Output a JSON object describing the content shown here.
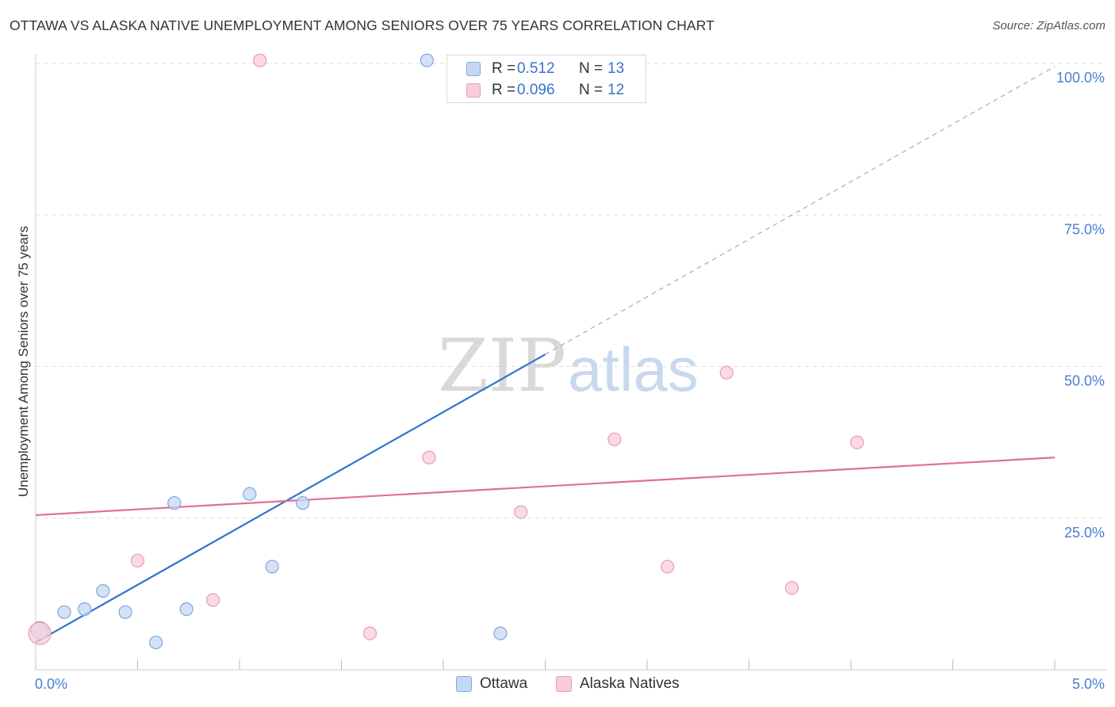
{
  "title": "OTTAWA VS ALASKA NATIVE UNEMPLOYMENT AMONG SENIORS OVER 75 YEARS CORRELATION CHART",
  "source": "Source: ZipAtlas.com",
  "watermark": {
    "zip": "ZIP",
    "atlas": "atlas"
  },
  "colors": {
    "ottawa": "#4a7fd0",
    "ottawa_fill": "#c5d8f3",
    "ottawa_line": "#2e74d0",
    "alaska": "#e06f97",
    "alaska_fill": "#f8cdd9",
    "alaska_line": "#e06f97",
    "grid": "#dddddd",
    "tick_text": "#4a7fd0"
  },
  "legend": {
    "rows": [
      {
        "series": "Ottawa",
        "r_label": "R =",
        "r_value": "0.512",
        "n_label": "N =",
        "n_value": "13"
      },
      {
        "series": "Alaska Natives",
        "r_label": "R =",
        "r_value": "0.096",
        "n_label": "N =",
        "n_value": "12"
      }
    ]
  },
  "bottom_legend": [
    "Ottawa",
    "Alaska Natives"
  ],
  "chart_data": {
    "type": "scatter",
    "title": "OTTAWA VS ALASKA NATIVE UNEMPLOYMENT AMONG SENIORS OVER 75 YEARS CORRELATION CHART",
    "xlabel": "",
    "ylabel": "Unemployment Among Seniors over 75 years",
    "xlim": [
      0,
      5.0
    ],
    "ylim": [
      0,
      100
    ],
    "x_tick_labels": [
      "0.0%",
      "5.0%"
    ],
    "y_tick_labels": [
      "25.0%",
      "50.0%",
      "75.0%",
      "100.0%"
    ],
    "y_tick_values": [
      25,
      50,
      75,
      100
    ],
    "grid": true,
    "legend_position": "top-center",
    "series": [
      {
        "name": "Ottawa",
        "points": [
          [
            0.02,
            6.5
          ],
          [
            0.14,
            9.5
          ],
          [
            0.24,
            10.0
          ],
          [
            0.33,
            13.0
          ],
          [
            0.44,
            9.5
          ],
          [
            0.59,
            4.5
          ],
          [
            0.68,
            27.5
          ],
          [
            0.74,
            10.0
          ],
          [
            1.05,
            29.0
          ],
          [
            1.16,
            17.0
          ],
          [
            1.31,
            27.5
          ],
          [
            1.92,
            100.5
          ],
          [
            2.28,
            6.0
          ]
        ],
        "trend": {
          "x0": 0.0,
          "y0": 4.5,
          "x1": 2.5,
          "y1": 52.0,
          "dashed_to_x": 5.0,
          "dashed_to_y": 99.5
        }
      },
      {
        "name": "Alaska Natives",
        "points": [
          [
            0.02,
            6.0
          ],
          [
            0.5,
            18.0
          ],
          [
            0.87,
            11.5
          ],
          [
            1.1,
            100.5
          ],
          [
            1.64,
            6.0
          ],
          [
            1.93,
            35.0
          ],
          [
            2.38,
            26.0
          ],
          [
            2.84,
            38.0
          ],
          [
            3.1,
            17.0
          ],
          [
            3.39,
            49.0
          ],
          [
            3.71,
            13.5
          ],
          [
            4.03,
            37.5
          ]
        ],
        "trend": {
          "x0": 0.0,
          "y0": 25.5,
          "x1": 5.0,
          "y1": 35.0
        }
      }
    ]
  }
}
